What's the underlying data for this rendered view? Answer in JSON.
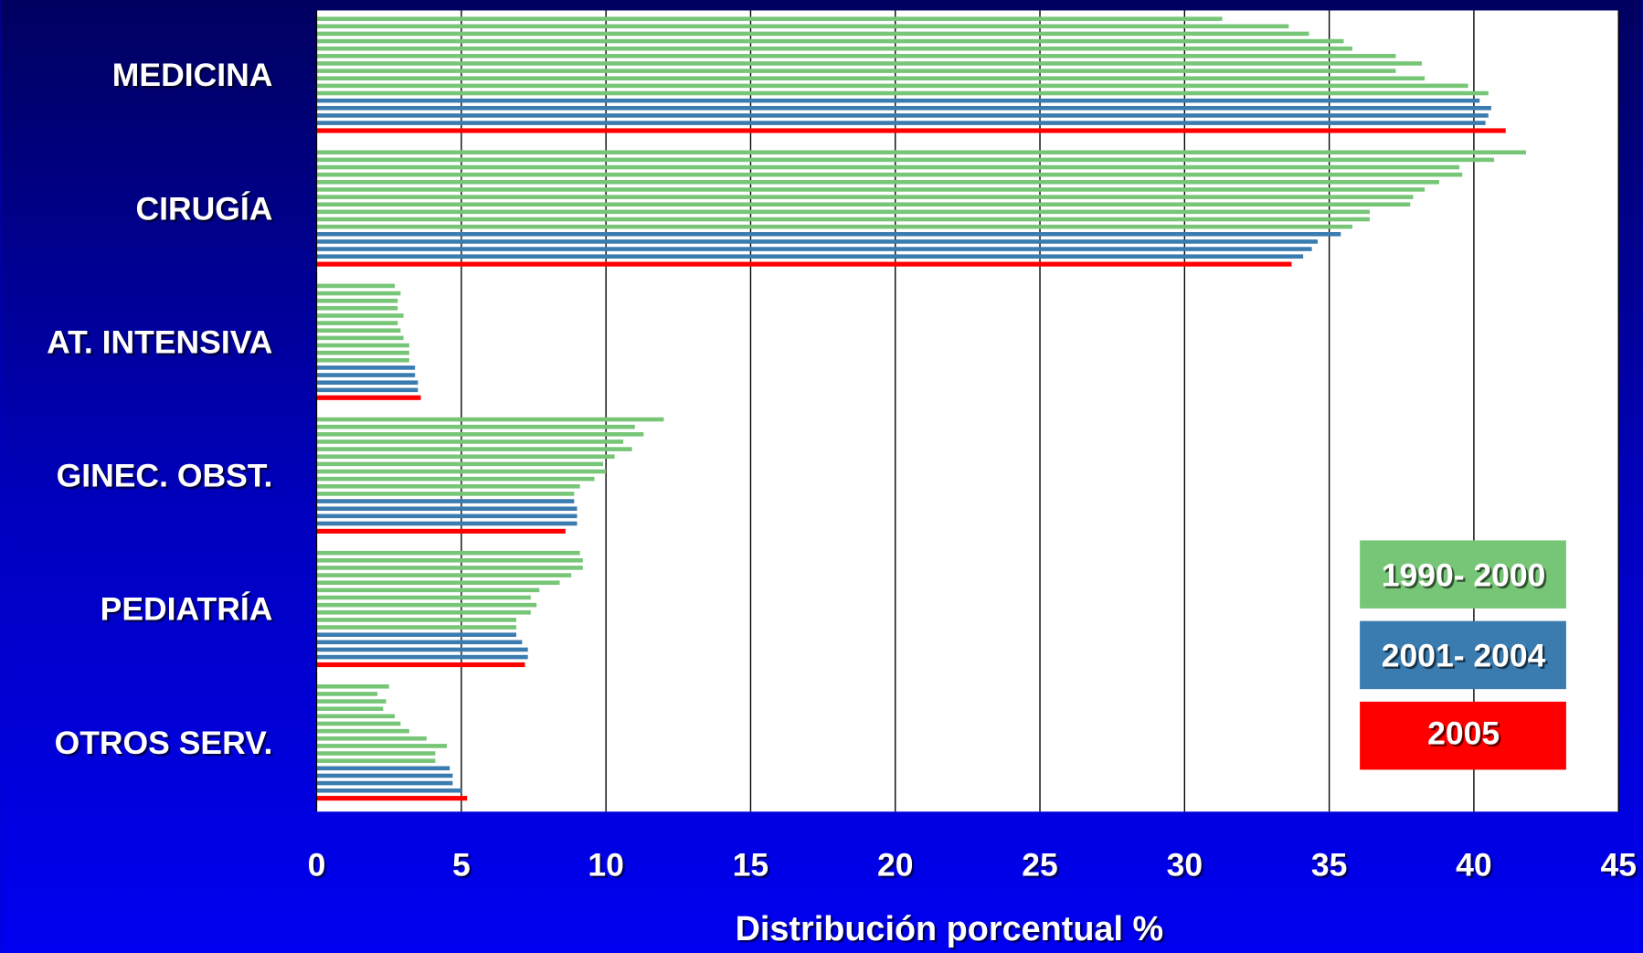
{
  "chart_data": {
    "type": "grouped-barh",
    "x_label": "Distribución porcentual %",
    "categories": [
      "MEDICINA",
      "CIRUGÍA",
      "AT. INTENSIVA",
      "GINEC. OBST.",
      "PEDIATRÍA",
      "OTROS SERV."
    ],
    "series": [
      {
        "name": "1990- 2000",
        "color": "#77c677",
        "values": [
          [
            31.3,
            33.6,
            34.3,
            35.5,
            35.8,
            37.3,
            38.2,
            37.3,
            38.3,
            39.8,
            40.5
          ],
          [
            41.8,
            40.7,
            39.5,
            39.6,
            38.8,
            38.3,
            37.9,
            37.8,
            36.4,
            36.4,
            35.8
          ],
          [
            2.7,
            2.9,
            2.8,
            2.8,
            3.0,
            2.8,
            2.9,
            3.0,
            3.2,
            3.2,
            3.2
          ],
          [
            12.0,
            11.0,
            11.3,
            10.6,
            10.9,
            10.3,
            9.9,
            10.0,
            9.6,
            9.1,
            8.9
          ],
          [
            9.1,
            9.2,
            9.2,
            8.8,
            8.4,
            7.7,
            7.4,
            7.6,
            7.4,
            6.9,
            6.9
          ],
          [
            2.5,
            2.1,
            2.4,
            2.3,
            2.7,
            2.9,
            3.2,
            3.8,
            4.5,
            4.1,
            4.1
          ]
        ]
      },
      {
        "name": "2001- 2004",
        "color": "#3a7bb0",
        "values": [
          [
            40.2,
            40.6,
            40.5,
            40.4
          ],
          [
            35.4,
            34.6,
            34.4,
            34.1
          ],
          [
            3.4,
            3.4,
            3.5,
            3.5
          ],
          [
            8.9,
            9.0,
            9.0,
            9.0
          ],
          [
            6.9,
            7.1,
            7.3,
            7.3
          ],
          [
            4.6,
            4.7,
            4.7,
            5.0
          ]
        ]
      },
      {
        "name": "2005",
        "color": "#ff0000",
        "values": [
          [
            41.1
          ],
          [
            33.7
          ],
          [
            3.6
          ],
          [
            8.6
          ],
          [
            7.2
          ],
          [
            5.2
          ]
        ]
      }
    ],
    "xlim": [
      0,
      45
    ],
    "xticks": [
      0,
      5,
      10,
      15,
      20,
      25,
      30,
      35,
      40,
      45
    ],
    "grid": true
  }
}
